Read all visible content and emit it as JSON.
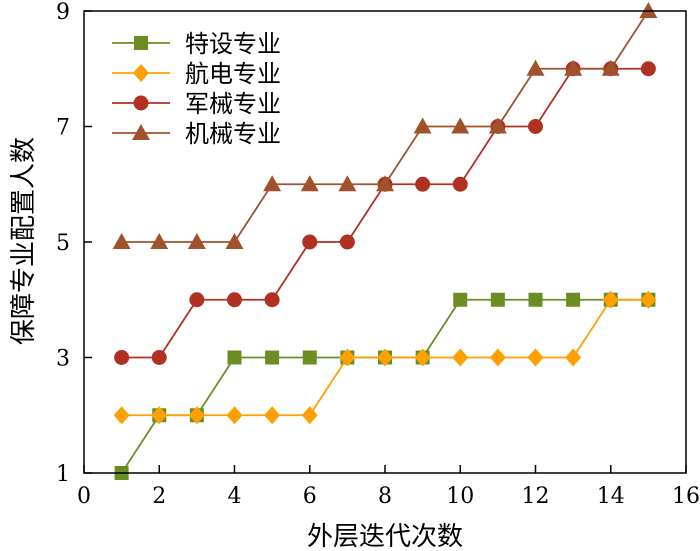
{
  "chart_data": {
    "type": "line",
    "title": "",
    "xlabel": "外层迭代次数",
    "ylabel": "保障专业配置人数",
    "xlim": [
      0,
      16
    ],
    "ylim": [
      1,
      9
    ],
    "xticks": [
      0,
      2,
      4,
      6,
      8,
      10,
      12,
      14,
      16
    ],
    "yticks": [
      1,
      3,
      5,
      7,
      9
    ],
    "grid": false,
    "legend_position": "top-left",
    "x": [
      1,
      2,
      3,
      4,
      5,
      6,
      7,
      8,
      9,
      10,
      11,
      12,
      13,
      14,
      15
    ],
    "series": [
      {
        "name": "特设专业",
        "marker": "square",
        "color": "#6b8e23",
        "values": [
          1,
          2,
          2,
          3,
          3,
          3,
          3,
          3,
          3,
          4,
          4,
          4,
          4,
          4,
          4
        ]
      },
      {
        "name": "航电专业",
        "marker": "diamond",
        "color": "#ffa000",
        "values": [
          2,
          2,
          2,
          2,
          2,
          2,
          3,
          3,
          3,
          3,
          3,
          3,
          3,
          4,
          4
        ]
      },
      {
        "name": "军械专业",
        "marker": "circle",
        "color": "#b03022",
        "values": [
          3,
          3,
          4,
          4,
          4,
          5,
          5,
          6,
          6,
          6,
          7,
          7,
          8,
          8,
          8
        ]
      },
      {
        "name": "机械专业",
        "marker": "triangle",
        "color": "#a0522d",
        "values": [
          5,
          5,
          5,
          5,
          6,
          6,
          6,
          6,
          7,
          7,
          7,
          8,
          8,
          8,
          9
        ]
      }
    ]
  }
}
